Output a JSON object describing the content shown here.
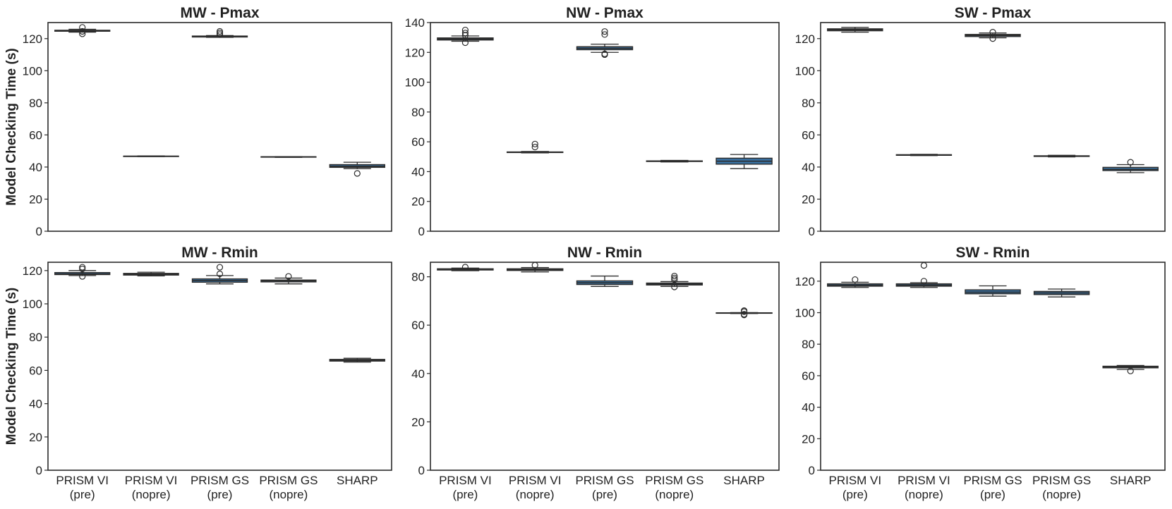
{
  "ylabel": "Model Checking Time (s)",
  "categories": [
    [
      "PRISM VI",
      "(pre)"
    ],
    [
      "PRISM VI",
      "(nopre)"
    ],
    [
      "PRISM GS",
      "(pre)"
    ],
    [
      "PRISM GS",
      "(nopre)"
    ],
    [
      "SHARP",
      ""
    ]
  ],
  "colors": {
    "box": "#3a72a2",
    "edge": "#2b2b2b",
    "axis": "#2b2b2b"
  },
  "chart_data": [
    {
      "type": "box",
      "title": "MW - Pmax",
      "ylim": [
        0,
        130
      ],
      "yticks": [
        0,
        20,
        40,
        60,
        80,
        100,
        120
      ],
      "grid": false,
      "boxes": [
        {
          "category": "PRISM VI (pre)",
          "whisker_low": 124.0,
          "q1": 124.6,
          "median": 124.9,
          "q3": 125.2,
          "whisker_high": 125.8,
          "outliers": [
            127.0,
            123.0,
            124.5
          ]
        },
        {
          "category": "PRISM VI (nopre)",
          "whisker_low": 46.5,
          "q1": 46.6,
          "median": 46.7,
          "q3": 46.8,
          "whisker_high": 46.9,
          "outliers": []
        },
        {
          "category": "PRISM GS (pre)",
          "whisker_low": 120.8,
          "q1": 121.0,
          "median": 121.3,
          "q3": 121.6,
          "whisker_high": 121.9,
          "outliers": [
            124.5,
            123.5,
            122.5
          ]
        },
        {
          "category": "PRISM GS (nopre)",
          "whisker_low": 46.0,
          "q1": 46.2,
          "median": 46.3,
          "q3": 46.4,
          "whisker_high": 46.5,
          "outliers": []
        },
        {
          "category": "SHARP",
          "whisker_low": 39.0,
          "q1": 39.8,
          "median": 40.5,
          "q3": 41.5,
          "whisker_high": 43.0,
          "outliers": [
            36.0
          ]
        }
      ]
    },
    {
      "type": "box",
      "title": "NW - Pmax",
      "ylim": [
        0,
        140
      ],
      "yticks": [
        0,
        20,
        40,
        60,
        80,
        100,
        120,
        140
      ],
      "grid": false,
      "boxes": [
        {
          "category": "PRISM VI (pre)",
          "whisker_low": 127.5,
          "q1": 128.3,
          "median": 129.0,
          "q3": 129.7,
          "whisker_high": 131.0,
          "outliers": [
            135.0,
            133.0,
            131.5,
            126.5
          ]
        },
        {
          "category": "PRISM VI (nopre)",
          "whisker_low": 52.6,
          "q1": 52.8,
          "median": 53.0,
          "q3": 53.2,
          "whisker_high": 53.5,
          "outliers": [
            58.5,
            56.5
          ]
        },
        {
          "category": "PRISM GS (pre)",
          "whisker_low": 120.0,
          "q1": 121.8,
          "median": 122.7,
          "q3": 123.8,
          "whisker_high": 125.5,
          "outliers": [
            134.0,
            132.0,
            119.0,
            118.5
          ]
        },
        {
          "category": "PRISM GS (nopre)",
          "whisker_low": 46.5,
          "q1": 46.8,
          "median": 47.0,
          "q3": 47.2,
          "whisker_high": 47.5,
          "outliers": []
        },
        {
          "category": "SHARP",
          "whisker_low": 42.0,
          "q1": 45.0,
          "median": 47.0,
          "q3": 49.0,
          "whisker_high": 51.5,
          "outliers": []
        }
      ]
    },
    {
      "type": "box",
      "title": "SW - Pmax",
      "ylim": [
        0,
        130
      ],
      "yticks": [
        0,
        20,
        40,
        60,
        80,
        100,
        120
      ],
      "grid": false,
      "boxes": [
        {
          "category": "PRISM VI (pre)",
          "whisker_low": 124.0,
          "q1": 124.9,
          "median": 125.5,
          "q3": 126.1,
          "whisker_high": 127.0,
          "outliers": []
        },
        {
          "category": "PRISM VI (nopre)",
          "whisker_low": 47.1,
          "q1": 47.3,
          "median": 47.5,
          "q3": 47.7,
          "whisker_high": 47.9,
          "outliers": []
        },
        {
          "category": "PRISM GS (pre)",
          "whisker_low": 120.5,
          "q1": 121.3,
          "median": 122.0,
          "q3": 122.6,
          "whisker_high": 123.5,
          "outliers": [
            124.0,
            120.0
          ]
        },
        {
          "category": "PRISM GS (nopre)",
          "whisker_low": 46.3,
          "q1": 46.6,
          "median": 46.8,
          "q3": 47.0,
          "whisker_high": 47.3,
          "outliers": []
        },
        {
          "category": "SHARP",
          "whisker_low": 36.5,
          "q1": 37.8,
          "median": 38.5,
          "q3": 39.8,
          "whisker_high": 41.5,
          "outliers": [
            43.0
          ]
        }
      ]
    },
    {
      "type": "box",
      "title": "MW - Rmin",
      "ylim": [
        0,
        125
      ],
      "yticks": [
        0,
        20,
        40,
        60,
        80,
        100,
        120
      ],
      "grid": false,
      "boxes": [
        {
          "category": "PRISM VI (pre)",
          "whisker_low": 117.0,
          "q1": 117.6,
          "median": 118.0,
          "q3": 118.8,
          "whisker_high": 120.0,
          "outliers": [
            122.0,
            121.0,
            116.5
          ]
        },
        {
          "category": "PRISM VI (nopre)",
          "whisker_low": 116.8,
          "q1": 117.3,
          "median": 117.8,
          "q3": 118.3,
          "whisker_high": 119.0,
          "outliers": []
        },
        {
          "category": "PRISM GS (pre)",
          "whisker_low": 112.0,
          "q1": 113.0,
          "median": 114.0,
          "q3": 115.0,
          "whisker_high": 117.0,
          "outliers": [
            122.0,
            118.0
          ]
        },
        {
          "category": "PRISM GS (nopre)",
          "whisker_low": 112.0,
          "q1": 113.2,
          "median": 113.8,
          "q3": 114.3,
          "whisker_high": 115.5,
          "outliers": [
            116.5
          ]
        },
        {
          "category": "SHARP",
          "whisker_low": 65.0,
          "q1": 65.6,
          "median": 66.0,
          "q3": 66.6,
          "whisker_high": 67.3,
          "outliers": []
        }
      ]
    },
    {
      "type": "box",
      "title": "NW - Rmin",
      "ylim": [
        0,
        86
      ],
      "yticks": [
        0,
        20,
        40,
        60,
        80
      ],
      "grid": false,
      "boxes": [
        {
          "category": "PRISM VI (pre)",
          "whisker_low": 82.5,
          "q1": 82.8,
          "median": 83.0,
          "q3": 83.3,
          "whisker_high": 83.6,
          "outliers": [
            84.0
          ]
        },
        {
          "category": "PRISM VI (nopre)",
          "whisker_low": 82.0,
          "q1": 82.6,
          "median": 83.0,
          "q3": 83.3,
          "whisker_high": 83.8,
          "outliers": [
            84.8
          ]
        },
        {
          "category": "PRISM GS (pre)",
          "whisker_low": 76.0,
          "q1": 76.8,
          "median": 77.5,
          "q3": 78.3,
          "whisker_high": 80.3,
          "outliers": []
        },
        {
          "category": "PRISM GS (nopre)",
          "whisker_low": 76.0,
          "q1": 76.6,
          "median": 77.0,
          "q3": 77.4,
          "whisker_high": 78.0,
          "outliers": [
            80.3,
            79.5,
            78.8,
            75.8
          ]
        },
        {
          "category": "SHARP",
          "whisker_low": 64.8,
          "q1": 64.9,
          "median": 65.0,
          "q3": 65.1,
          "whisker_high": 65.2,
          "outliers": [
            66.0,
            65.6,
            64.5,
            64.2
          ]
        }
      ]
    },
    {
      "type": "box",
      "title": "SW - Rmin",
      "ylim": [
        0,
        132
      ],
      "yticks": [
        0,
        20,
        40,
        60,
        80,
        100,
        120
      ],
      "grid": false,
      "boxes": [
        {
          "category": "PRISM VI (pre)",
          "whisker_low": 116.0,
          "q1": 116.8,
          "median": 117.5,
          "q3": 118.3,
          "whisker_high": 119.3,
          "outliers": [
            121.0
          ]
        },
        {
          "category": "PRISM VI (nopre)",
          "whisker_low": 116.0,
          "q1": 116.8,
          "median": 117.5,
          "q3": 118.3,
          "whisker_high": 119.0,
          "outliers": [
            130.0,
            120.0
          ]
        },
        {
          "category": "PRISM GS (pre)",
          "whisker_low": 110.5,
          "q1": 112.0,
          "median": 113.0,
          "q3": 114.5,
          "whisker_high": 117.0,
          "outliers": []
        },
        {
          "category": "PRISM GS (nopre)",
          "whisker_low": 110.0,
          "q1": 111.5,
          "median": 112.5,
          "q3": 113.5,
          "whisker_high": 115.0,
          "outliers": []
        },
        {
          "category": "SHARP",
          "whisker_low": 64.0,
          "q1": 65.0,
          "median": 65.5,
          "q3": 66.0,
          "whisker_high": 66.5,
          "outliers": [
            63.0
          ]
        }
      ]
    }
  ]
}
